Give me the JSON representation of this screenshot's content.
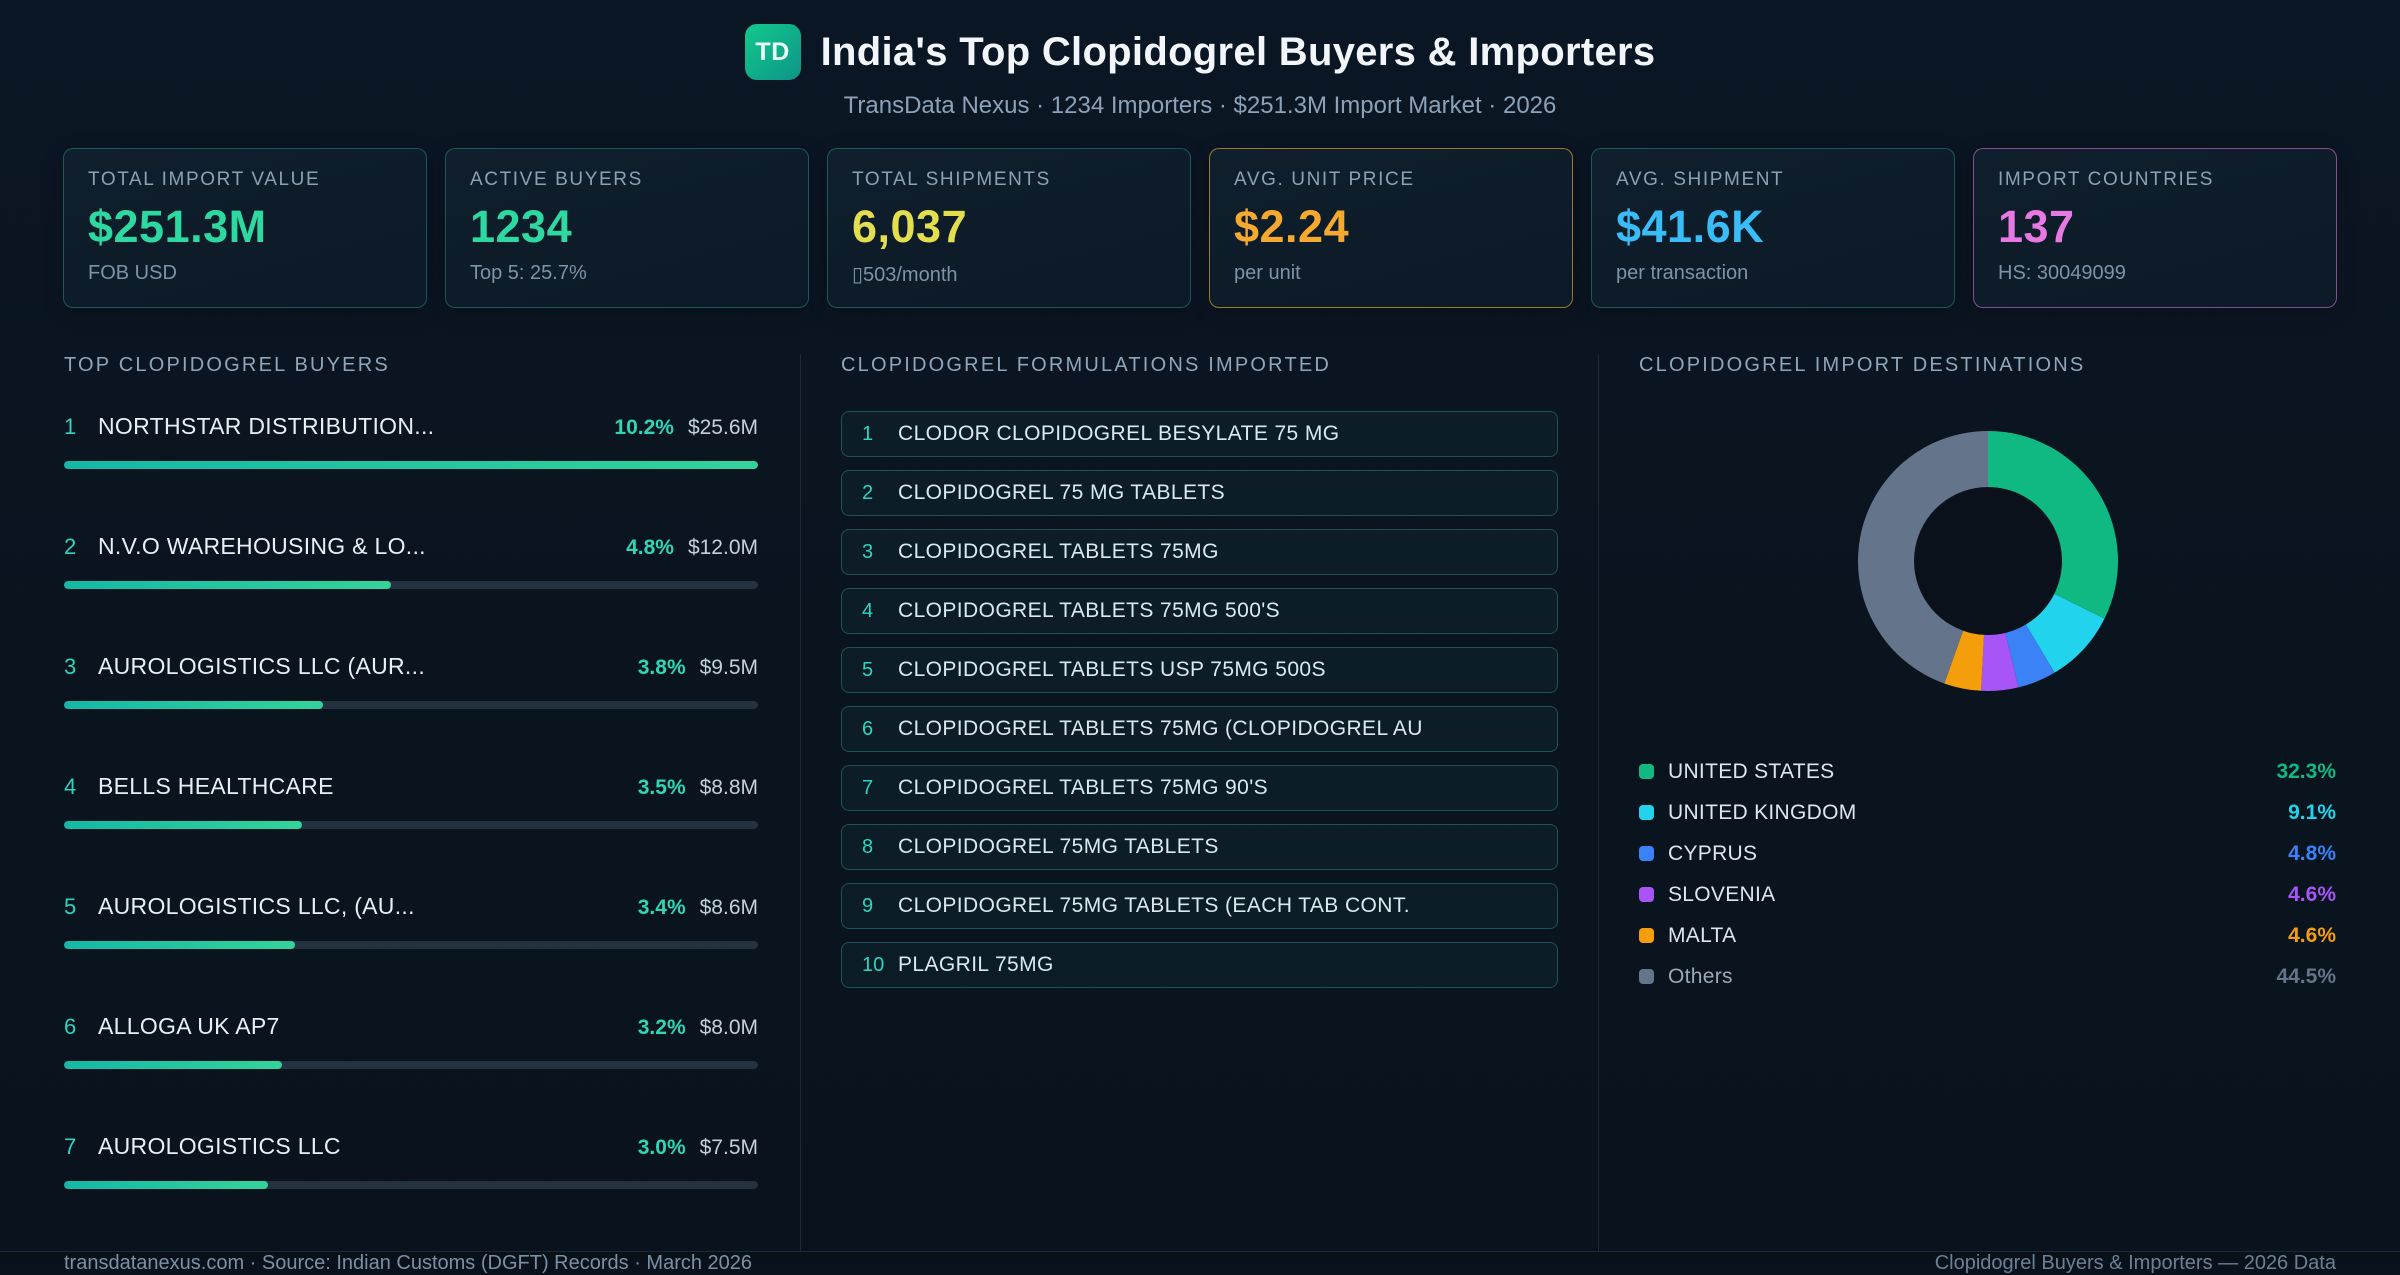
{
  "header": {
    "badge": "TD",
    "title": "India's Top Clopidogrel Buyers & Importers",
    "subtitle": "TransData Nexus · 1234 Importers · $251.3M Import Market · 2026"
  },
  "stats": [
    {
      "label": "TOTAL IMPORT VALUE",
      "value": "$251.3M",
      "sub": "FOB USD",
      "color": "#2dd9a0",
      "border": "#2dd4bf55"
    },
    {
      "label": "ACTIVE BUYERS",
      "value": "1234",
      "sub": "Top 5: 25.7%",
      "color": "#2dd9a0",
      "border": "#2dd4bf55"
    },
    {
      "label": "TOTAL SHIPMENTS",
      "value": "6,037",
      "sub": "▯503/month",
      "color": "#e3de4e",
      "border": "#2dd4bf55"
    },
    {
      "label": "AVG. UNIT PRICE",
      "value": "$2.24",
      "sub": "per unit",
      "color": "#f6a92f",
      "border": "#f6b93b99"
    },
    {
      "label": "AVG. SHIPMENT",
      "value": "$41.6K",
      "sub": "per transaction",
      "color": "#38bdf8",
      "border": "#2dd4bf55"
    },
    {
      "label": "IMPORT COUNTRIES",
      "value": "137",
      "sub": "HS: 30049099",
      "color": "#e879e2",
      "border": "#e878e08c"
    }
  ],
  "buyers": {
    "title": "TOP CLOPIDOGREL BUYERS",
    "items": [
      {
        "rank": 1,
        "name": "NORTHSTAR DISTRIBUTION...",
        "share": "10.2%",
        "share_pct": 10.2,
        "value": "$25.6M"
      },
      {
        "rank": 2,
        "name": "N.V.O WAREHOUSING & LO...",
        "share": "4.8%",
        "share_pct": 4.8,
        "value": "$12.0M"
      },
      {
        "rank": 3,
        "name": "AUROLOGISTICS LLC (AUR...",
        "share": "3.8%",
        "share_pct": 3.8,
        "value": "$9.5M"
      },
      {
        "rank": 4,
        "name": "BELLS HEALTHCARE",
        "share": "3.5%",
        "share_pct": 3.5,
        "value": "$8.8M"
      },
      {
        "rank": 5,
        "name": "AUROLOGISTICS LLC, (AU...",
        "share": "3.4%",
        "share_pct": 3.4,
        "value": "$8.6M"
      },
      {
        "rank": 6,
        "name": "ALLOGA UK AP7",
        "share": "3.2%",
        "share_pct": 3.2,
        "value": "$8.0M"
      },
      {
        "rank": 7,
        "name": "AUROLOGISTICS LLC",
        "share": "3.0%",
        "share_pct": 3.0,
        "value": "$7.5M"
      }
    ]
  },
  "formulations": {
    "title": "CLOPIDOGREL FORMULATIONS IMPORTED",
    "items": [
      {
        "rank": 1,
        "name": "CLODOR CLOPIDOGREL BESYLATE 75 MG"
      },
      {
        "rank": 2,
        "name": "CLOPIDOGREL 75 MG TABLETS"
      },
      {
        "rank": 3,
        "name": "CLOPIDOGREL TABLETS 75MG"
      },
      {
        "rank": 4,
        "name": "CLOPIDOGREL TABLETS 75MG 500'S"
      },
      {
        "rank": 5,
        "name": "CLOPIDOGREL TABLETS USP 75MG 500S"
      },
      {
        "rank": 6,
        "name": "CLOPIDOGREL TABLETS 75MG (CLOPIDOGREL AU"
      },
      {
        "rank": 7,
        "name": "CLOPIDOGREL TABLETS 75MG 90'S"
      },
      {
        "rank": 8,
        "name": "CLOPIDOGREL 75MG TABLETS"
      },
      {
        "rank": 9,
        "name": "CLOPIDOGREL 75MG TABLETS (EACH TAB CONT."
      },
      {
        "rank": 10,
        "name": "PLAGRIL 75MG"
      }
    ]
  },
  "destinations": {
    "title": "CLOPIDOGREL IMPORT DESTINATIONS"
  },
  "chart_data": {
    "type": "pie",
    "donut": true,
    "title": "CLOPIDOGREL IMPORT DESTINATIONS",
    "labels": [
      "UNITED STATES",
      "UNITED KINGDOM",
      "CYPRUS",
      "SLOVENIA",
      "MALTA",
      "Others"
    ],
    "values": [
      32.3,
      9.1,
      4.8,
      4.6,
      4.6,
      44.5
    ],
    "value_labels": [
      "32.3%",
      "9.1%",
      "4.8%",
      "4.6%",
      "4.6%",
      "44.5%"
    ],
    "colors": [
      "#10b981",
      "#22d3ee",
      "#3b82f6",
      "#a855f7",
      "#f59e0b",
      "#64748b"
    ],
    "legend_position": "bottom"
  },
  "footer": {
    "left": "transdatanexus.com · Source: Indian Customs (DGFT) Records · March 2026",
    "right": "Clopidogrel Buyers & Importers — 2026 Data"
  }
}
